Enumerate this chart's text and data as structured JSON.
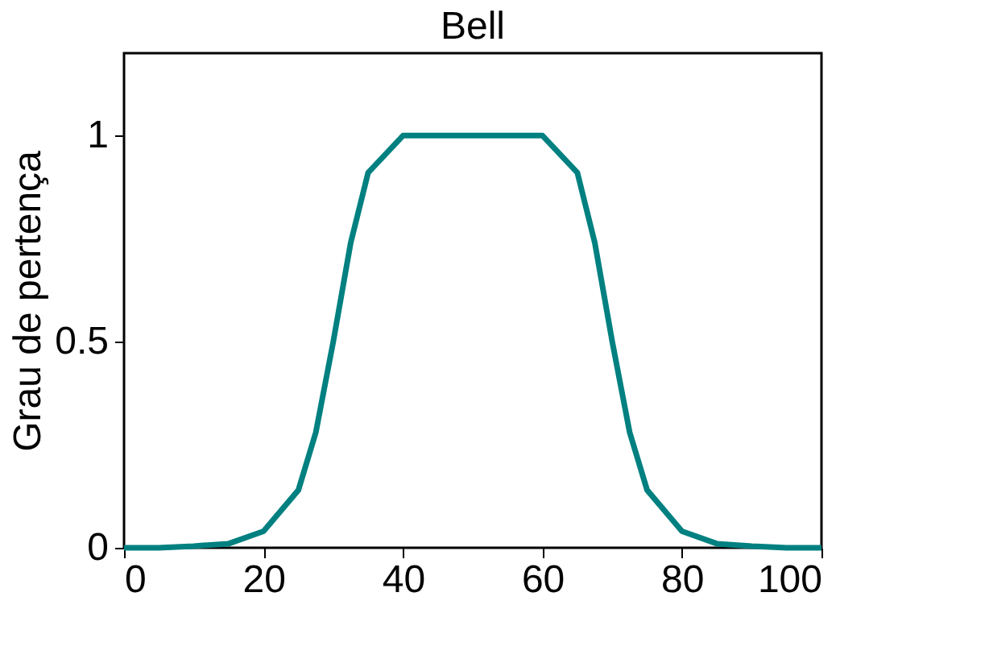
{
  "chart_data": {
    "type": "line",
    "title": "Bell",
    "ylabel": "Grau de pertença",
    "x": [
      0,
      5,
      10,
      15,
      20,
      25,
      27.5,
      30,
      32.5,
      35,
      40,
      45,
      50,
      55,
      60,
      65,
      67.5,
      70,
      72.5,
      75,
      80,
      85,
      90,
      95,
      100
    ],
    "series": [
      {
        "color": "#008080",
        "values": [
          0,
          0,
          0.004,
          0.01,
          0.04,
          0.14,
          0.28,
          0.5,
          0.74,
          0.91,
          1,
          1,
          1,
          1,
          1,
          0.91,
          0.74,
          0.5,
          0.28,
          0.14,
          0.04,
          0.01,
          0.004,
          0,
          0
        ]
      }
    ],
    "xlim": [
      0,
      100
    ],
    "xticks": [
      0,
      20,
      40,
      60,
      80,
      100
    ],
    "ylim": [
      0,
      1.2
    ],
    "yticks": [
      0,
      0.5,
      1
    ],
    "grid": false,
    "marker": "none",
    "line_style": "solid"
  }
}
